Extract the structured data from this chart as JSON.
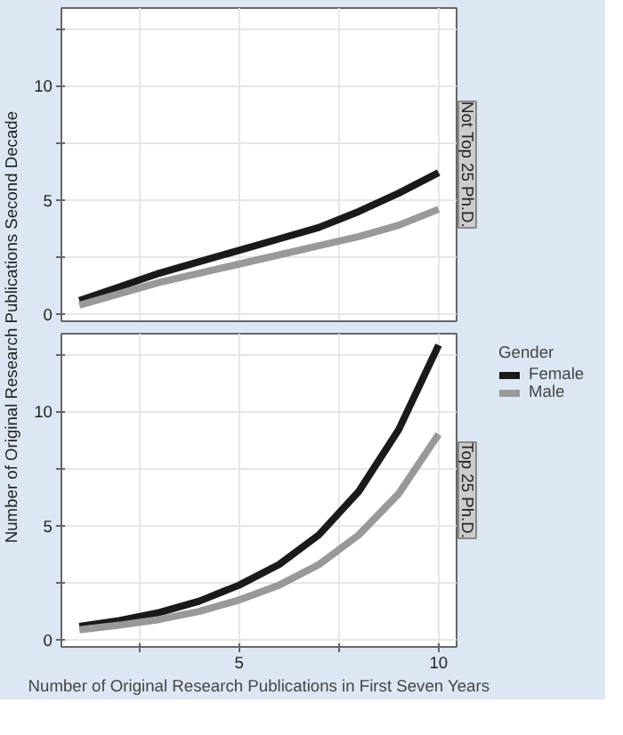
{
  "chart_data": [
    {
      "type": "line",
      "title": "Not Top 25 Ph.D.",
      "ylabel": "Number of Original Research Publications Second Decade",
      "x": [
        1,
        2,
        3,
        4,
        5,
        6,
        7,
        8,
        9,
        10
      ],
      "xlim": [
        0.55,
        10.45
      ],
      "xticks": [
        {
          "value": 2.5,
          "label": null
        },
        {
          "value": 5,
          "label": null
        },
        {
          "value": 7.5,
          "label": null
        },
        {
          "value": 10,
          "label": null
        }
      ],
      "ylim": [
        -0.3,
        13.4
      ],
      "yticks": [
        0,
        {
          "value": 2.5,
          "label": null
        },
        5,
        {
          "value": 7.5,
          "label": null
        },
        10,
        {
          "value": 12.5,
          "label": null
        }
      ],
      "tick_labels": "y",
      "grid": true,
      "series": [
        {
          "color": "#1a1a1a",
          "values": [
            0.6,
            1.2,
            1.8,
            2.3,
            2.8,
            3.3,
            3.8,
            4.5,
            5.3,
            6.2
          ]
        },
        {
          "color": "#999999",
          "values": [
            0.4,
            0.9,
            1.4,
            1.8,
            2.2,
            2.6,
            3.0,
            3.4,
            3.9,
            4.6
          ]
        }
      ]
    },
    {
      "type": "line",
      "title": "Top 25 Ph.D.",
      "xlabel": "Number of Original Research Publications in First Seven Years",
      "legend_title": "Gender",
      "legend": "right",
      "x": [
        1,
        2,
        3,
        4,
        5,
        6,
        7,
        8,
        9,
        10
      ],
      "xlim": [
        0.55,
        10.45
      ],
      "xticks": [
        {
          "value": 2.5,
          "label": null
        },
        5,
        {
          "value": 7.5,
          "label": null
        },
        10
      ],
      "ylim": [
        -0.3,
        13.4
      ],
      "yticks": [
        0,
        {
          "value": 2.5,
          "label": null
        },
        5,
        {
          "value": 7.5,
          "label": null
        },
        10,
        {
          "value": 12.5,
          "label": null
        }
      ],
      "grid": true,
      "series": [
        {
          "name": "Female",
          "color": "#1a1a1a",
          "values": [
            0.6,
            0.85,
            1.2,
            1.7,
            2.4,
            3.3,
            4.6,
            6.5,
            9.2,
            12.9
          ]
        },
        {
          "name": "Male",
          "color": "#999999",
          "values": [
            0.45,
            0.65,
            0.9,
            1.25,
            1.75,
            2.4,
            3.3,
            4.6,
            6.4,
            9.0
          ]
        }
      ]
    }
  ]
}
